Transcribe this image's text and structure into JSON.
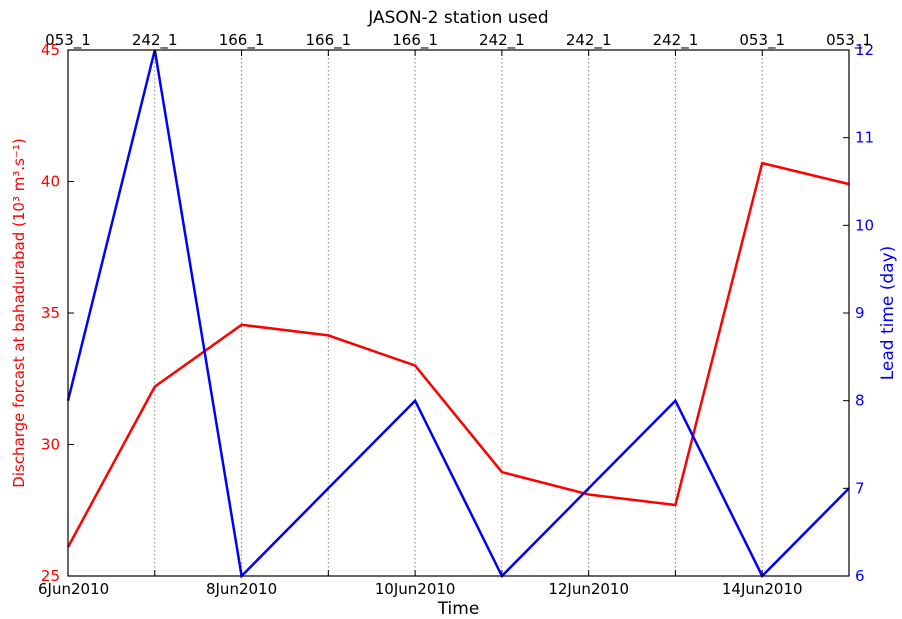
{
  "chart_data": {
    "type": "line",
    "title": "JASON-2 station used",
    "xlabel": "Time",
    "ylabel_left": "Discharge forcast at bahadurabad (10³ m³.s⁻¹)",
    "ylabel_right": "Lead time (day)",
    "x": [
      "6Jun2010",
      "7Jun2010",
      "8Jun2010",
      "9Jun2010",
      "10Jun2010",
      "11Jun2010",
      "12Jun2010",
      "13Jun2010",
      "14Jun2010",
      "15Jun2010"
    ],
    "x_tick_labels": [
      "6Jun2010",
      "8Jun2010",
      "10Jun2010",
      "12Jun2010",
      "14Jun2010"
    ],
    "top_tick_labels": [
      "053_1",
      "242_1",
      "166_1",
      "166_1",
      "166_1",
      "242_1",
      "242_1",
      "242_1",
      "053_1",
      "053_1"
    ],
    "ylim_left": [
      25,
      45
    ],
    "yticks_left": [
      "25",
      "30",
      "35",
      "40",
      "45"
    ],
    "ylim_right": [
      6,
      12
    ],
    "yticks_right": [
      "6",
      "7",
      "8",
      "9",
      "10",
      "11",
      "12"
    ],
    "grid": "vertical dotted lines at each day",
    "series": [
      {
        "axis": "left",
        "color": "#ff0000",
        "values": [
          26.1,
          32.2,
          34.55,
          34.15,
          33.0,
          28.95,
          28.1,
          27.7,
          40.7,
          39.9
        ]
      },
      {
        "axis": "right",
        "color": "#0000ff",
        "values": [
          8.0,
          12.0,
          6.0,
          7.0,
          8.0,
          6.0,
          7.0,
          8.0,
          6.0,
          7.0
        ]
      }
    ],
    "colors": {
      "left_axis": "#ff0000",
      "right_axis": "#0000ff",
      "axis": "#000000",
      "grid": "#808080"
    }
  }
}
